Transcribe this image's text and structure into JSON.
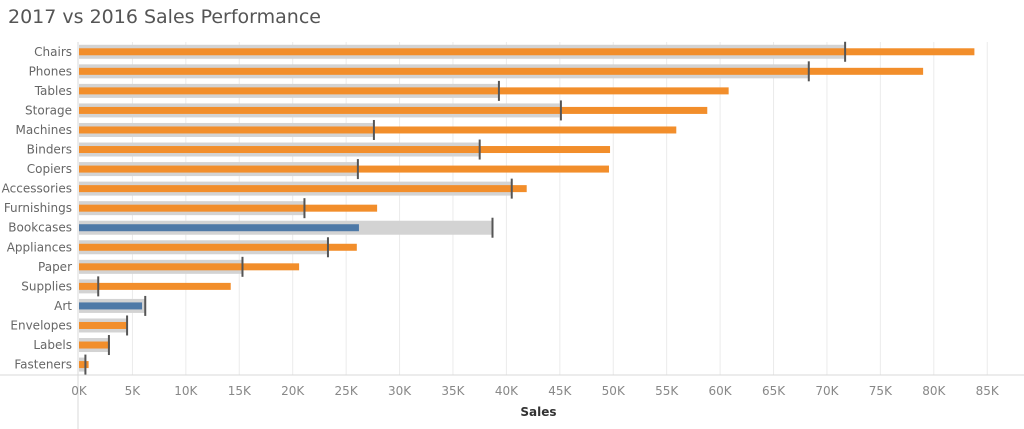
{
  "chart_data": {
    "type": "bar",
    "title": "2017 vs 2016 Sales Performance",
    "xlabel": "Sales",
    "ylabel": "",
    "xlim": [
      0,
      87000
    ],
    "grid": true,
    "x_ticks": [
      "0K",
      "5K",
      "10K",
      "15K",
      "20K",
      "25K",
      "30K",
      "35K",
      "40K",
      "45K",
      "50K",
      "55K",
      "60K",
      "65K",
      "70K",
      "75K",
      "80K",
      "85K"
    ],
    "x_tick_values": [
      0,
      5000,
      10000,
      15000,
      20000,
      25000,
      30000,
      35000,
      40000,
      45000,
      50000,
      55000,
      60000,
      65000,
      70000,
      75000,
      80000,
      85000
    ],
    "categories": [
      "Chairs",
      "Phones",
      "Tables",
      "Storage",
      "Machines",
      "Binders",
      "Copiers",
      "Accessories",
      "Furnishings",
      "Bookcases",
      "Appliances",
      "Paper",
      "Supplies",
      "Art",
      "Envelopes",
      "Labels",
      "Fasteners"
    ],
    "series": [
      {
        "values": [
          83800,
          79000,
          60800,
          58800,
          55900,
          49700,
          49600,
          41900,
          27900,
          26200,
          26000,
          20600,
          14200,
          5900,
          4500,
          2900,
          900
        ]
      },
      {
        "values": [
          71700,
          68300,
          39300,
          45100,
          27600,
          37500,
          26100,
          40500,
          21100,
          38700,
          23300,
          15300,
          1800,
          6200,
          4500,
          2800,
          600
        ]
      }
    ],
    "colors": {
      "above_target": "#f28e2b",
      "below_target": "#4e79a7",
      "reference_band": "#d3d3d3",
      "reference_line": "#555555",
      "grid": "#ebebeb",
      "label_text": "#666666"
    }
  }
}
